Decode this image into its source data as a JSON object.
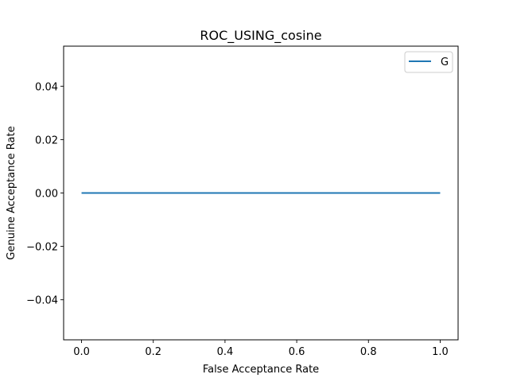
{
  "chart_data": {
    "type": "line",
    "title": "ROC_USING_cosine",
    "xlabel": "False Acceptance Rate",
    "ylabel": "Genuine Acceptance Rate",
    "xlim": [
      -0.05,
      1.05
    ],
    "ylim": [
      -0.055,
      0.055
    ],
    "xticks": [
      0.0,
      0.2,
      0.4,
      0.6,
      0.8,
      1.0
    ],
    "xtick_labels": [
      "0.0",
      "0.2",
      "0.4",
      "0.6",
      "0.8",
      "1.0"
    ],
    "yticks": [
      -0.04,
      -0.02,
      0.0,
      0.02,
      0.04
    ],
    "ytick_labels": [
      "−0.04",
      "−0.02",
      "0.00",
      "0.02",
      "0.04"
    ],
    "grid": false,
    "legend_position": "top-right",
    "series": [
      {
        "name": "G",
        "color": "#1f77b4",
        "x": [
          0.0,
          1.0
        ],
        "y": [
          0.0,
          0.0
        ]
      }
    ]
  }
}
